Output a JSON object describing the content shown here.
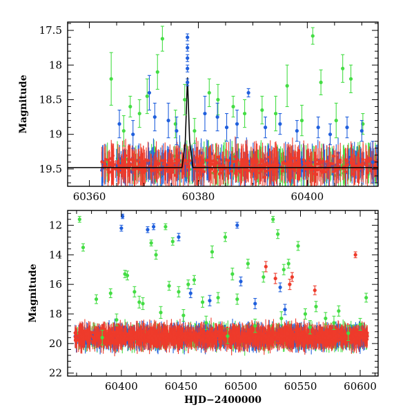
{
  "colors": {
    "green": "#44dd44",
    "blue": "#1f5fdd",
    "red": "#ee3b2b",
    "model": "#000000"
  },
  "chart_data": [
    {
      "type": "scatter",
      "xlabel": "",
      "ylabel": "Magnitude",
      "xlim": [
        60356,
        60413
      ],
      "ylim": [
        17.38,
        19.75
      ],
      "y_inverted": true,
      "x_ticks": [
        60360,
        60380,
        60400
      ],
      "x_tick_labels": [
        "60360",
        "60380",
        "60400"
      ],
      "y_ticks": [
        17.5,
        18,
        18.5,
        19,
        19.5
      ],
      "y_tick_labels": [
        "17.5",
        "18",
        "18.5",
        "19",
        "19.5"
      ],
      "model_curve": {
        "description_free": true,
        "x": [
          60356,
          60377.0,
          60377.6,
          60378.0,
          60378.4,
          60379.0,
          60413
        ],
        "y": [
          19.48,
          19.48,
          19.1,
          18.18,
          19.1,
          19.48,
          19.48
        ]
      },
      "series": [
        {
          "color_key": "green",
          "x": [
            60364.0,
            60366.3,
            60367.5,
            60369.2,
            60370.6,
            60372.5,
            60373.4,
            60375.8,
            60377.5,
            60379.3,
            60382.0,
            60383.6,
            60386.4,
            60388.5,
            60391.7,
            60394.2,
            60396.3,
            60399.0,
            60401.0,
            60402.5,
            60405.3,
            60406.5,
            60408.0,
            60410.2
          ],
          "y": [
            18.2,
            18.95,
            18.6,
            18.7,
            18.45,
            18.1,
            17.62,
            18.85,
            18.5,
            18.95,
            18.4,
            18.5,
            18.6,
            18.7,
            18.65,
            18.7,
            18.3,
            18.8,
            17.58,
            18.25,
            18.8,
            18.05,
            18.2,
            18.85
          ],
          "err": [
            0.38,
            0.22,
            0.15,
            0.2,
            0.25,
            0.25,
            0.18,
            0.2,
            0.22,
            0.18,
            0.2,
            0.22,
            0.15,
            0.2,
            0.2,
            0.25,
            0.3,
            0.22,
            0.12,
            0.18,
            0.25,
            0.2,
            0.2,
            0.15
          ]
        },
        {
          "color_key": "blue",
          "x": [
            60365.5,
            60368.0,
            60371.0,
            60372.0,
            60374.5,
            60376.0,
            60378.0,
            60378.0,
            60378.0,
            60378.0,
            60378.0,
            60381.2,
            60383.5,
            60385.2,
            60387.1,
            60389.2,
            60392.3,
            60395.0,
            60398.1,
            60402.0,
            60404.2,
            60407.3,
            60410.0,
            60412.0
          ],
          "y": [
            18.85,
            19.0,
            18.4,
            18.75,
            18.8,
            18.95,
            17.6,
            17.75,
            17.9,
            18.05,
            18.25,
            18.7,
            18.75,
            18.9,
            18.85,
            18.4,
            18.9,
            18.85,
            18.95,
            18.9,
            19.0,
            18.9,
            18.95,
            19.4
          ],
          "err": [
            0.2,
            0.2,
            0.25,
            0.2,
            0.25,
            0.2,
            0.05,
            0.05,
            0.05,
            0.05,
            0.05,
            0.25,
            0.2,
            0.2,
            0.2,
            0.06,
            0.15,
            0.15,
            0.15,
            0.15,
            0.15,
            0.15,
            0.15,
            0.3
          ]
        }
      ]
    },
    {
      "type": "scatter",
      "xlabel": "HJD−2400000",
      "ylabel": "Magnitude",
      "xlim": [
        60355,
        60615
      ],
      "ylim": [
        11.0,
        22.2
      ],
      "y_inverted": true,
      "x_ticks": [
        60400,
        60450,
        60500,
        60550,
        60600
      ],
      "x_tick_labels": [
        "60400",
        "60450",
        "60500",
        "60550",
        "60600"
      ],
      "y_ticks": [
        12,
        14,
        16,
        18,
        20,
        22
      ],
      "y_tick_labels": [
        "12",
        "14",
        "16",
        "18",
        "20",
        "22"
      ],
      "series": [
        {
          "color_key": "green",
          "x": [
            60365,
            60368,
            60379,
            60391,
            60403,
            60405,
            60411,
            60418,
            60425,
            60429,
            60437,
            60440,
            60443,
            60448,
            60456,
            60461,
            60468,
            60476,
            60481,
            60487,
            60493,
            60497,
            60506,
            60519,
            60527,
            60531,
            60536,
            60540,
            60548,
            60554,
            60563,
            60571,
            60582,
            60600,
            60605,
            60384,
            60396,
            60415,
            60433,
            60452,
            60471,
            60489,
            60512,
            60534,
            60558,
            60578,
            60590
          ],
          "y": [
            11.6,
            13.5,
            17.0,
            16.6,
            15.3,
            15.4,
            16.5,
            17.3,
            13.2,
            14.0,
            12.1,
            16.1,
            13.1,
            16.5,
            16.0,
            15.7,
            17.2,
            13.8,
            16.9,
            12.8,
            15.3,
            17.0,
            14.6,
            15.5,
            11.6,
            12.6,
            15.0,
            14.6,
            13.4,
            18.0,
            17.5,
            18.3,
            17.8,
            18.7,
            16.9,
            19.6,
            18.4,
            17.2,
            17.9,
            18.1,
            18.6,
            19.5,
            18.8,
            18.3,
            18.9,
            18.6,
            19.3
          ],
          "err": [
            0.2,
            0.25,
            0.3,
            0.3,
            0.25,
            0.3,
            0.35,
            0.4,
            0.2,
            0.3,
            0.2,
            0.3,
            0.25,
            0.35,
            0.3,
            0.3,
            0.35,
            0.4,
            0.35,
            0.3,
            0.4,
            0.35,
            0.3,
            0.35,
            0.2,
            0.3,
            0.35,
            0.3,
            0.3,
            0.35,
            0.35,
            0.4,
            0.35,
            0.4,
            0.3,
            0.5,
            0.4,
            0.4,
            0.4,
            0.4,
            0.45,
            0.5,
            0.45,
            0.45,
            0.45,
            0.45,
            0.5
          ]
        },
        {
          "color_key": "blue",
          "x": [
            60401,
            60400,
            60422,
            60427,
            60448,
            60497,
            60500,
            60533,
            60537,
            60512,
            60474,
            60458
          ],
          "y": [
            11.4,
            12.2,
            12.3,
            12.1,
            12.8,
            12.0,
            15.8,
            16.2,
            17.7,
            17.3,
            17.1,
            16.6
          ],
          "err": [
            0.15,
            0.2,
            0.2,
            0.2,
            0.25,
            0.2,
            0.3,
            0.3,
            0.35,
            0.35,
            0.35,
            0.3
          ]
        },
        {
          "color_key": "red",
          "x": [
            60521,
            60529,
            60543,
            60541,
            60562,
            60596
          ],
          "y": [
            14.8,
            15.6,
            15.5,
            16.0,
            16.4,
            14.0
          ],
          "err": [
            0.35,
            0.35,
            0.3,
            0.35,
            0.3,
            0.2
          ]
        }
      ]
    }
  ]
}
